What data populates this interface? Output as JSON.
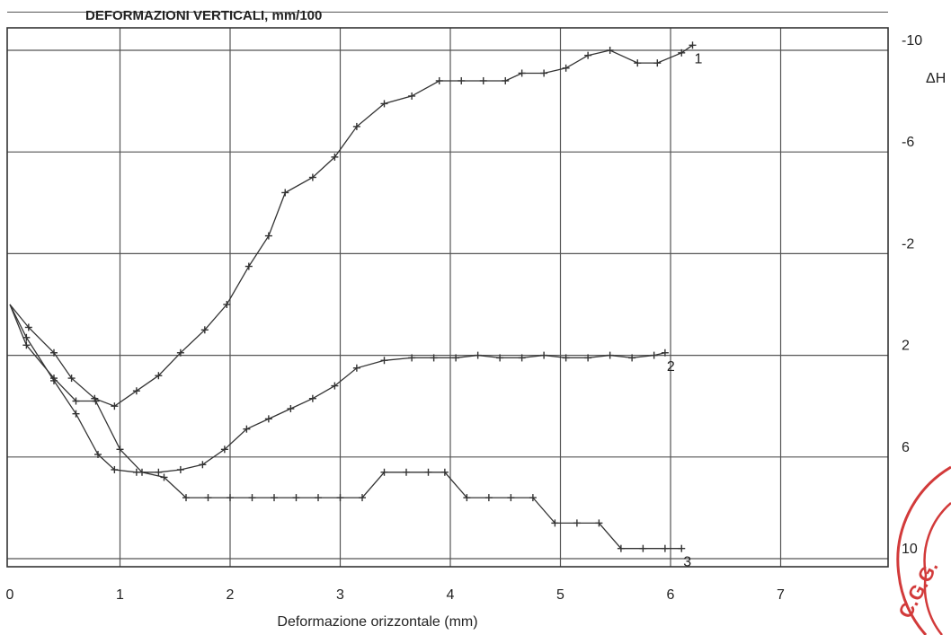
{
  "chart_data": {
    "type": "line",
    "title": "DEFORMAZIONI VERTICALI, mm/100",
    "xlabel": "Deformazione orizzontale (mm)",
    "ylabel": "ΔH",
    "xlim": [
      0,
      8
    ],
    "ylim": [
      -11.5,
      10.6
    ],
    "y_inverted": true,
    "grid": true,
    "x_ticks": [
      0,
      1,
      2,
      3,
      4,
      5,
      6,
      7
    ],
    "x_tick_labels": [
      "0",
      "1",
      "2",
      "3",
      "4",
      "5",
      "6",
      "7"
    ],
    "y_ticks": [
      -10,
      -6,
      -2,
      2,
      6,
      10
    ],
    "y_tick_labels": [
      "-10",
      "-6",
      "-2",
      "2",
      "6",
      "10"
    ],
    "series": [
      {
        "name": "1",
        "color": "#333333",
        "points": [
          [
            0.0,
            0.0
          ],
          [
            0.17,
            0.9
          ],
          [
            0.4,
            1.9
          ],
          [
            0.56,
            2.9
          ],
          [
            0.77,
            3.7
          ],
          [
            0.95,
            4.0
          ],
          [
            1.15,
            3.4
          ],
          [
            1.35,
            2.8
          ],
          [
            1.55,
            1.9
          ],
          [
            1.77,
            1.0
          ],
          [
            1.97,
            0.0
          ],
          [
            2.17,
            -1.5
          ],
          [
            2.35,
            -2.7
          ],
          [
            2.5,
            -4.4
          ],
          [
            2.75,
            -5.0
          ],
          [
            2.95,
            -5.8
          ],
          [
            3.15,
            -7.0
          ],
          [
            3.4,
            -7.9
          ],
          [
            3.65,
            -8.2
          ],
          [
            3.9,
            -8.8
          ],
          [
            4.1,
            -8.8
          ],
          [
            4.3,
            -8.8
          ],
          [
            4.5,
            -8.8
          ],
          [
            4.65,
            -9.1
          ],
          [
            4.85,
            -9.1
          ],
          [
            5.05,
            -9.3
          ],
          [
            5.25,
            -9.8
          ],
          [
            5.45,
            -10.0
          ],
          [
            5.7,
            -9.5
          ],
          [
            5.88,
            -9.5
          ],
          [
            6.1,
            -9.9
          ],
          [
            6.2,
            -10.2
          ]
        ]
      },
      {
        "name": "2",
        "color": "#333333",
        "points": [
          [
            0.0,
            0.0
          ],
          [
            0.15,
            1.3
          ],
          [
            0.4,
            3.0
          ],
          [
            0.6,
            4.3
          ],
          [
            0.8,
            5.9
          ],
          [
            0.95,
            6.5
          ],
          [
            1.15,
            6.6
          ],
          [
            1.35,
            6.6
          ],
          [
            1.55,
            6.5
          ],
          [
            1.75,
            6.3
          ],
          [
            1.95,
            5.7
          ],
          [
            2.15,
            4.9
          ],
          [
            2.35,
            4.5
          ],
          [
            2.55,
            4.1
          ],
          [
            2.75,
            3.7
          ],
          [
            2.95,
            3.2
          ],
          [
            3.15,
            2.5
          ],
          [
            3.4,
            2.2
          ],
          [
            3.65,
            2.1
          ],
          [
            3.85,
            2.1
          ],
          [
            4.05,
            2.1
          ],
          [
            4.25,
            2.0
          ],
          [
            4.45,
            2.1
          ],
          [
            4.65,
            2.1
          ],
          [
            4.85,
            2.0
          ],
          [
            5.05,
            2.1
          ],
          [
            5.25,
            2.1
          ],
          [
            5.45,
            2.0
          ],
          [
            5.65,
            2.1
          ],
          [
            5.85,
            2.0
          ],
          [
            5.95,
            1.9
          ]
        ]
      },
      {
        "name": "3",
        "color": "#333333",
        "points": [
          [
            0.0,
            0.0
          ],
          [
            0.15,
            1.6
          ],
          [
            0.4,
            2.9
          ],
          [
            0.6,
            3.8
          ],
          [
            0.78,
            3.8
          ],
          [
            1.0,
            5.7
          ],
          [
            1.2,
            6.6
          ],
          [
            1.4,
            6.8
          ],
          [
            1.6,
            7.6
          ],
          [
            1.8,
            7.6
          ],
          [
            2.0,
            7.6
          ],
          [
            2.2,
            7.6
          ],
          [
            2.4,
            7.6
          ],
          [
            2.6,
            7.6
          ],
          [
            2.8,
            7.6
          ],
          [
            3.0,
            7.6
          ],
          [
            3.2,
            7.6
          ],
          [
            3.4,
            6.6
          ],
          [
            3.6,
            6.6
          ],
          [
            3.8,
            6.6
          ],
          [
            3.95,
            6.6
          ],
          [
            4.15,
            7.6
          ],
          [
            4.35,
            7.6
          ],
          [
            4.55,
            7.6
          ],
          [
            4.75,
            7.6
          ],
          [
            4.95,
            8.6
          ],
          [
            5.15,
            8.6
          ],
          [
            5.35,
            8.6
          ],
          [
            5.55,
            9.6
          ],
          [
            5.75,
            9.6
          ],
          [
            5.95,
            9.6
          ],
          [
            6.1,
            9.6
          ]
        ]
      }
    ]
  },
  "stamp": {
    "text": "C.G.G.",
    "color": "#d23a3a"
  }
}
